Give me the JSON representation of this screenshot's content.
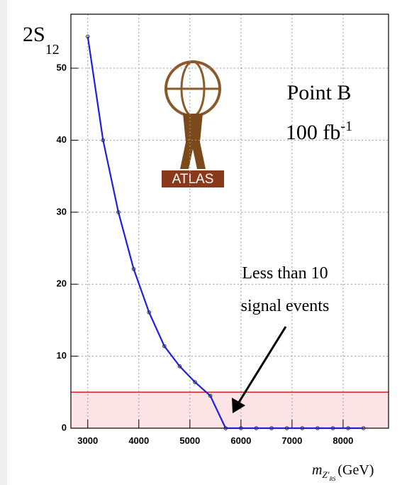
{
  "chart_data": {
    "type": "line",
    "ylabel": "2S",
    "ylabel_sub": "12",
    "xlabel": "m",
    "xlabel_sub": "Z'",
    "xlabel_subsub": "RS",
    "xlabel_unit": "(GeV)",
    "x": [
      3000,
      3300,
      3600,
      3900,
      4200,
      4500,
      4800,
      5100,
      5400,
      5700,
      6000,
      6300,
      6600,
      6900,
      7200,
      7500,
      7800,
      8100,
      8400
    ],
    "series": [
      {
        "name": "2S12",
        "color": "#1f1fe0",
        "values": [
          54.4,
          40,
          30,
          22.1,
          16.1,
          11.4,
          8.6,
          6.4,
          4.5,
          0,
          0,
          0,
          0,
          0,
          0,
          0,
          0,
          0,
          0
        ]
      }
    ],
    "threshold": {
      "value": 5,
      "color": "#e02020"
    },
    "xlim": [
      2670,
      8890
    ],
    "ylim": [
      0,
      57.5
    ],
    "xticks": [
      3000,
      4000,
      5000,
      6000,
      7000,
      8000
    ],
    "yticks": [
      0,
      10,
      20,
      30,
      40,
      50
    ],
    "grid": true,
    "annotations": {
      "point": "Point B",
      "lumi": "100 fb",
      "lumi_sup": "-1",
      "note_1": "Less than 10",
      "note_2": "signal events",
      "logo": "ATLAS"
    }
  }
}
